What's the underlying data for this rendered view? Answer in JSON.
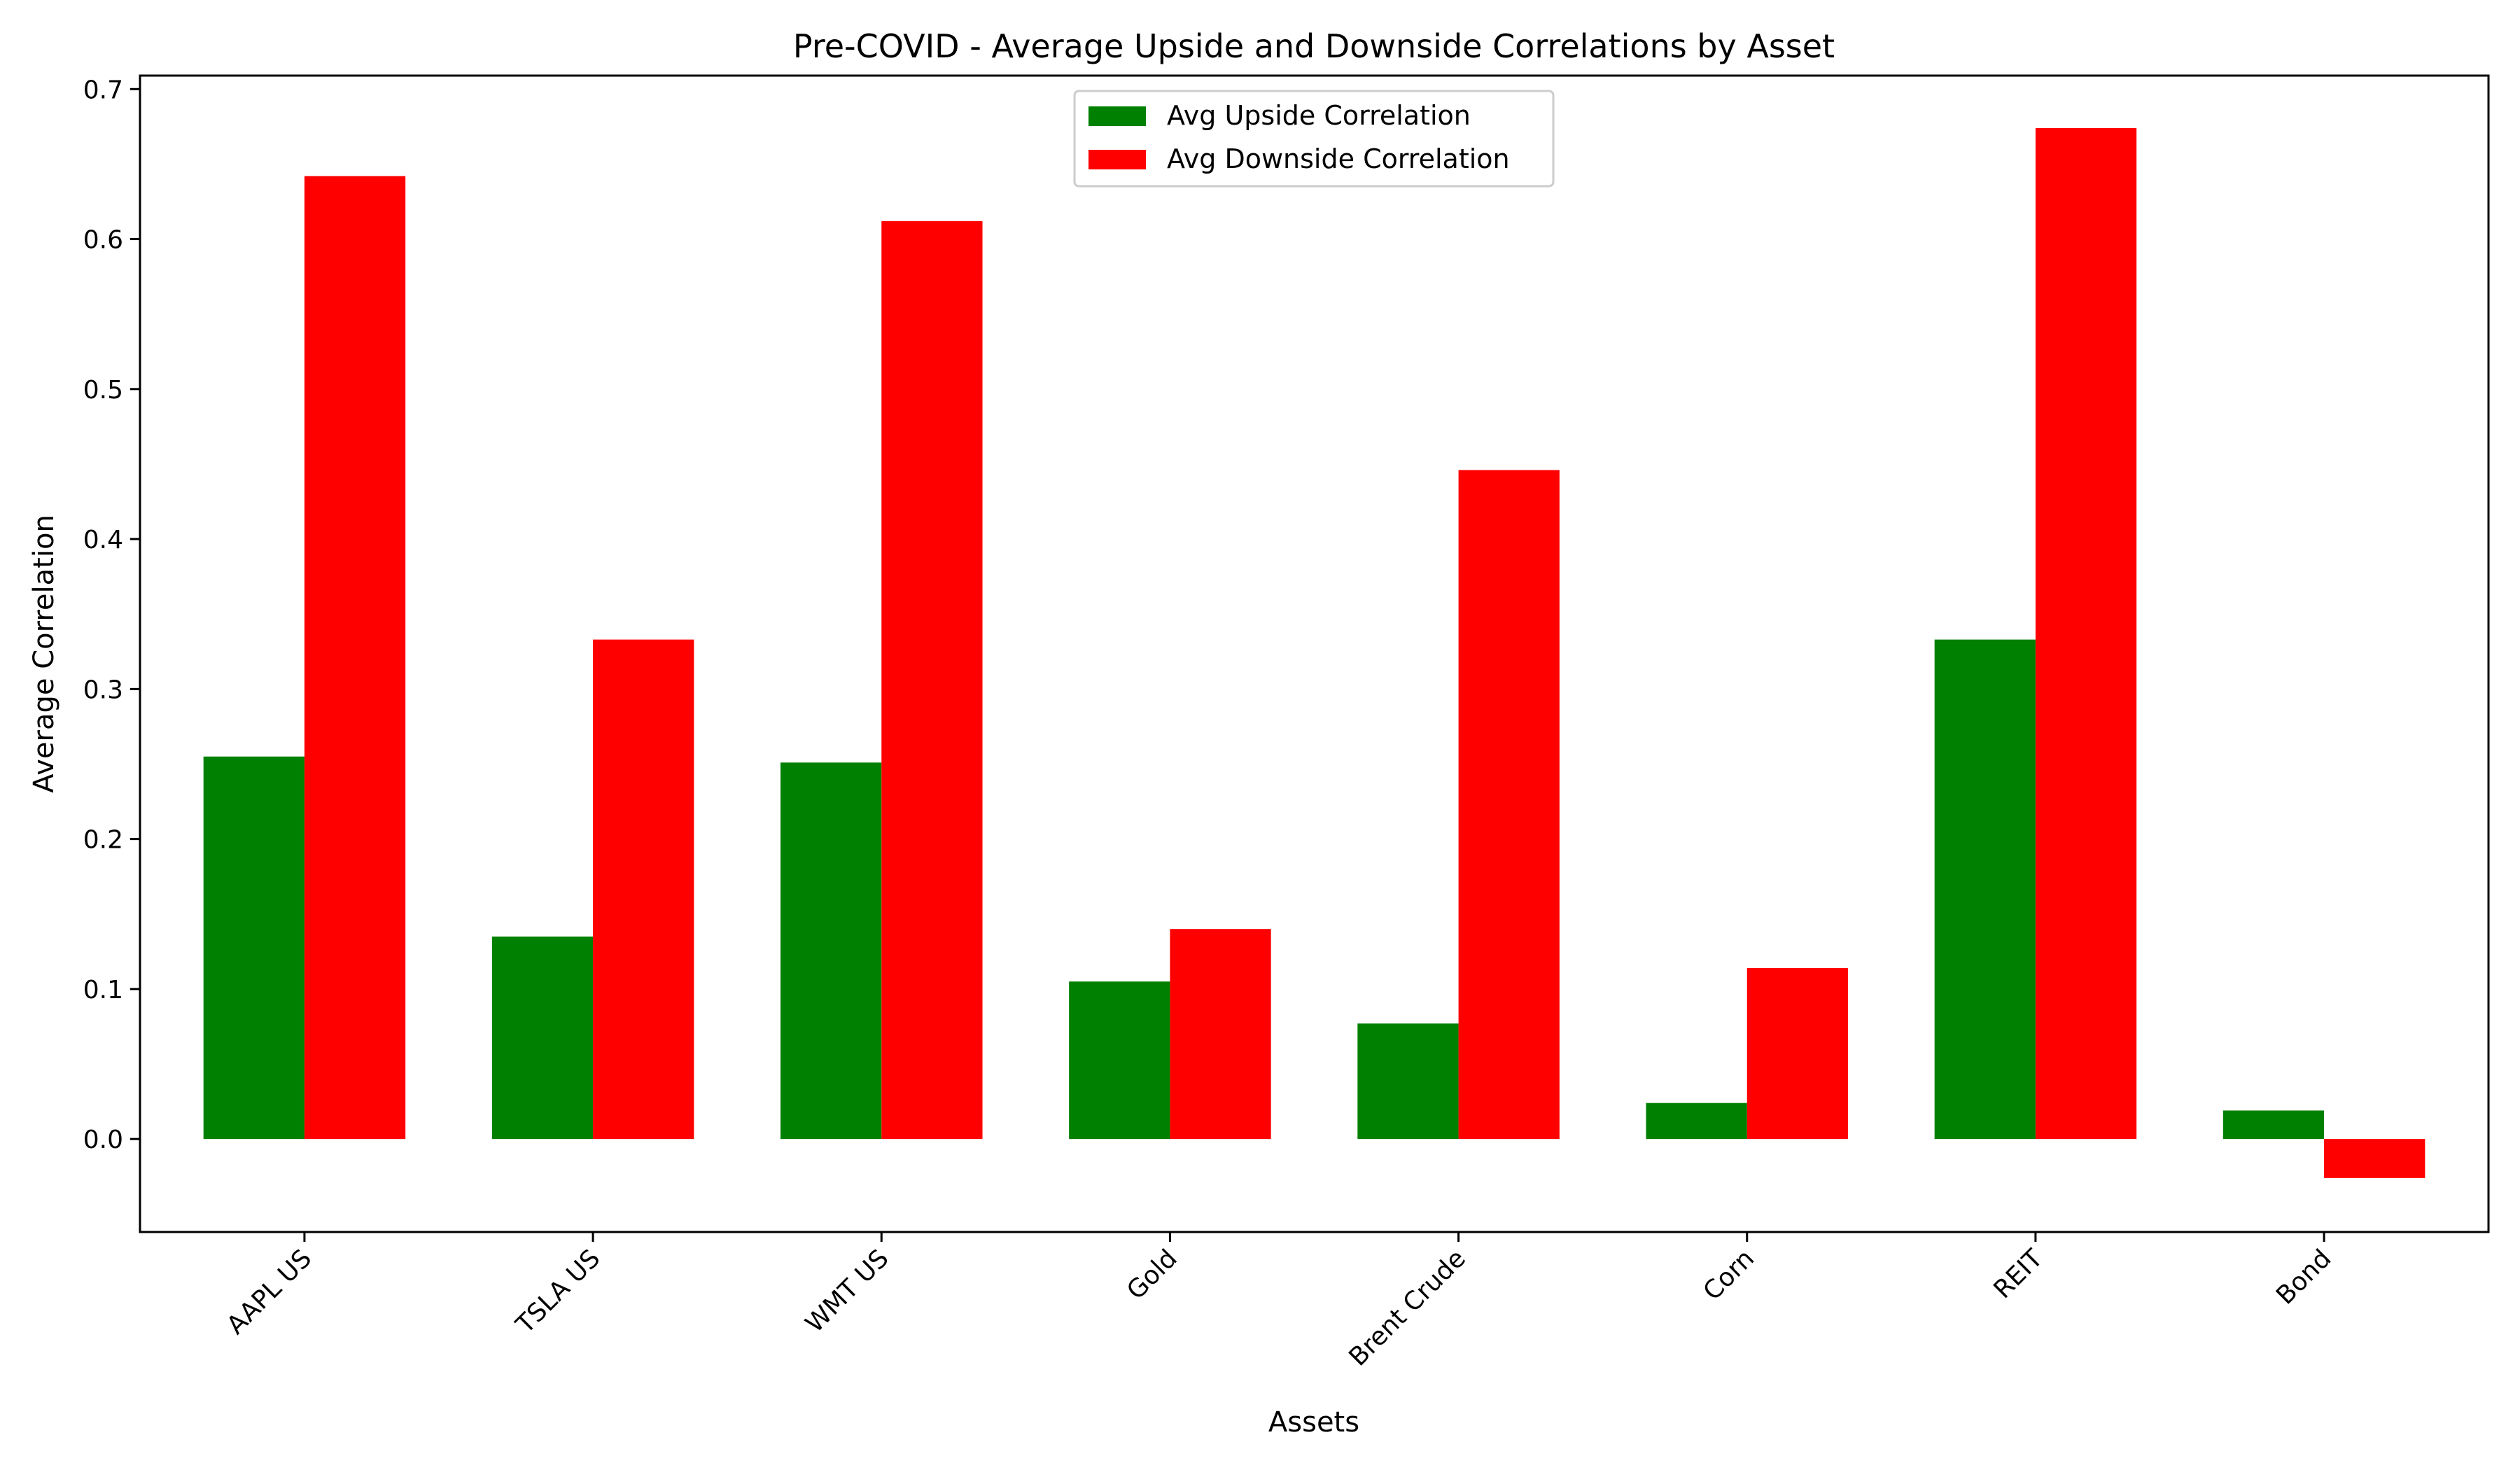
{
  "chart_data": {
    "type": "bar",
    "title": "Pre-COVID - Average Upside and Downside Correlations by Asset",
    "xlabel": "Assets",
    "ylabel": "Average Correlation",
    "categories": [
      "AAPL US",
      "TSLA US",
      "WMT US",
      "Gold",
      "Brent Crude",
      "Corn",
      "REIT",
      "Bond"
    ],
    "series": [
      {
        "name": "Avg Upside Correlation",
        "color": "#008000",
        "values": [
          0.255,
          0.135,
          0.251,
          0.105,
          0.077,
          0.024,
          0.333,
          0.019
        ]
      },
      {
        "name": "Avg Downside Correlation",
        "color": "#ff0000",
        "values": [
          0.642,
          0.333,
          0.612,
          0.14,
          0.446,
          0.114,
          0.674,
          -0.026
        ]
      }
    ],
    "ylim": [
      -0.062,
      0.709
    ],
    "yticks": [
      "0.0",
      "0.1",
      "0.2",
      "0.3",
      "0.4",
      "0.5",
      "0.6",
      "0.7"
    ],
    "grid": false,
    "legend_position": "top-center"
  }
}
